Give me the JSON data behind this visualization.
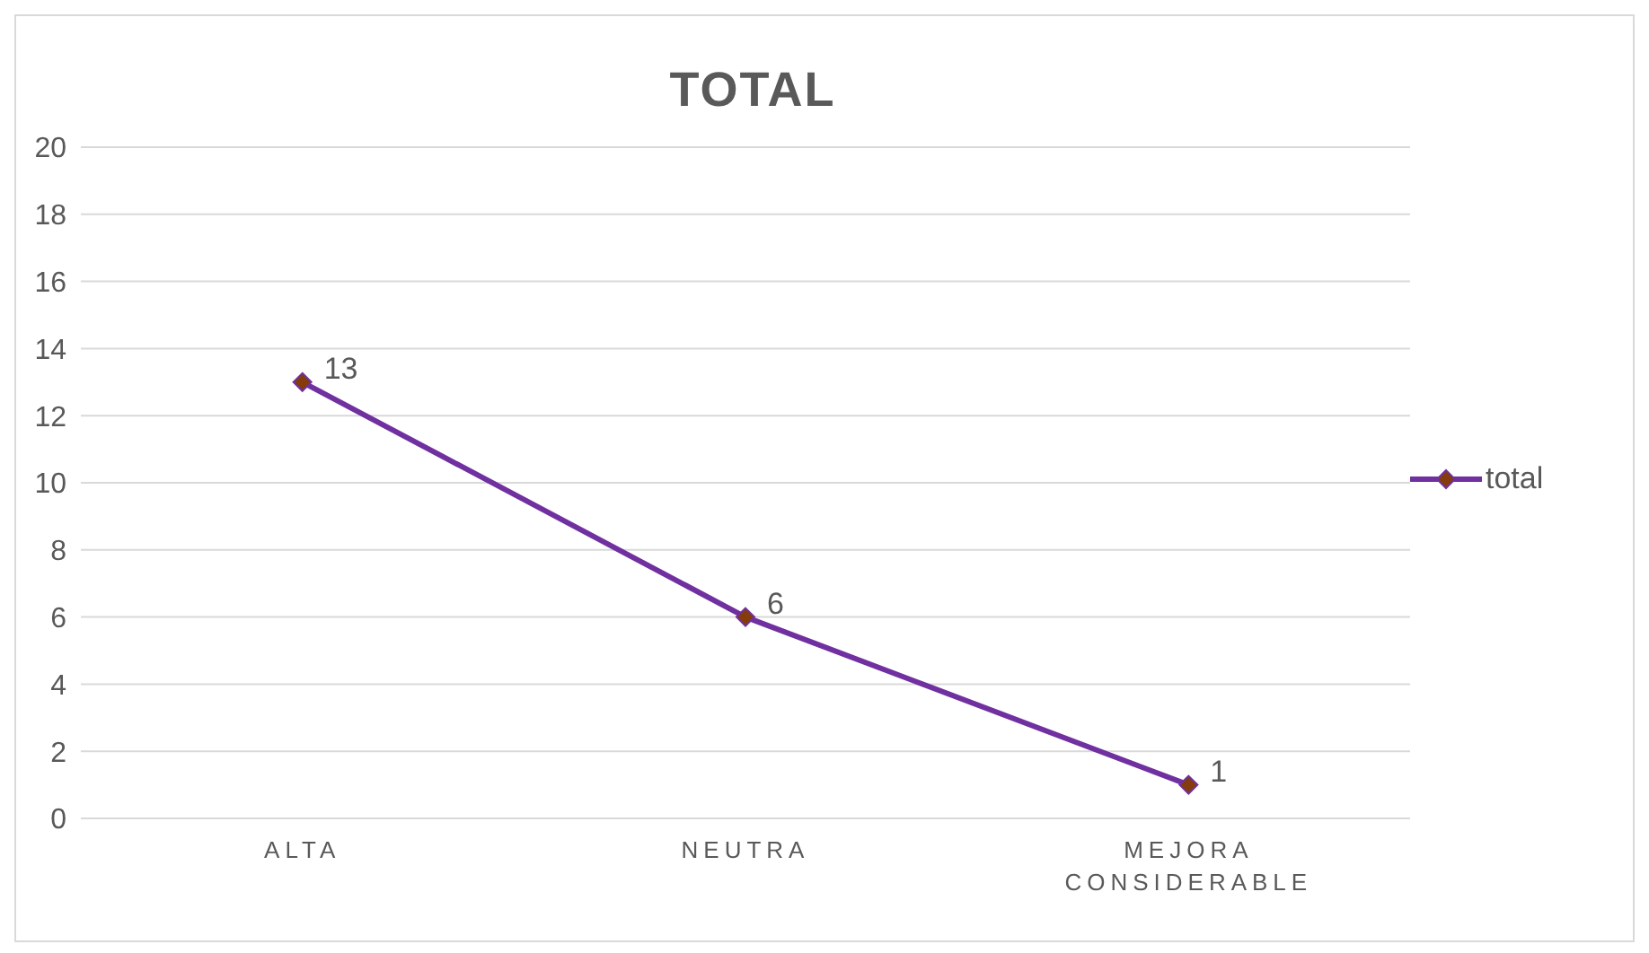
{
  "chart_data": {
    "type": "line",
    "title": "TOTAL",
    "categories": [
      "ALTA",
      "NEUTRA",
      "MEJORA CONSIDERABLE"
    ],
    "series": [
      {
        "name": "total",
        "color": "#7030a0",
        "values": [
          13,
          6,
          1
        ]
      }
    ],
    "ylim": [
      0,
      20
    ],
    "yticks": [
      0,
      2,
      4,
      6,
      8,
      10,
      12,
      14,
      16,
      18,
      20
    ],
    "grid": "y",
    "legend": "right",
    "marker": "diamond",
    "line_style": "solid",
    "data_labels": true
  }
}
